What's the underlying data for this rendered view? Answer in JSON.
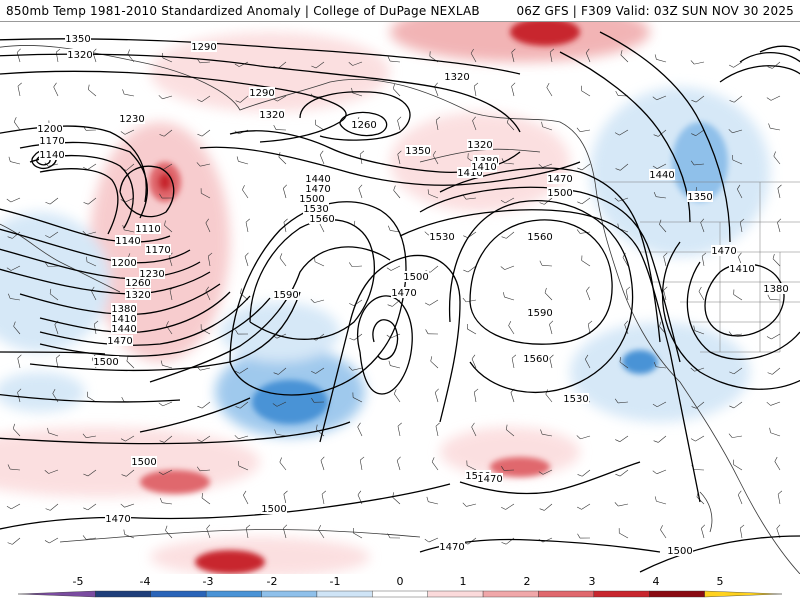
{
  "header": {
    "title_left": "850mb Temp 1981-2010 Standardized Anomaly | College of DuPage NEXLAB",
    "title_right": "06Z GFS | F309 Valid: 03Z SUN NOV 30 2025"
  },
  "map": {
    "variable": "850mb Temp Standardized Anomaly",
    "contour_field": "850mb geopotential height (dam)",
    "contour_labels": [
      "1350",
      "1320",
      "1290",
      "1290",
      "1320",
      "1320",
      "1260",
      "1320",
      "1350",
      "1380",
      "1410",
      "1440",
      "1470",
      "1500",
      "1530",
      "1560",
      "1560",
      "1500",
      "1470",
      "1230",
      "1200",
      "1170",
      "1140",
      "1110",
      "1140",
      "1170",
      "1200",
      "1230",
      "1260",
      "1320",
      "1380",
      "1410",
      "1440",
      "1470",
      "1500",
      "1590",
      "1500",
      "1470",
      "1410",
      "1530",
      "1590",
      "1560",
      "1530",
      "1500",
      "1500",
      "1470",
      "1470",
      "1500",
      "1470",
      "1410",
      "1380",
      "1350",
      "1440",
      "1500",
      "1470"
    ]
  },
  "legend": {
    "tick_labels": [
      "-5",
      "-4",
      "-3",
      "-2",
      "-1",
      "0",
      "1",
      "2",
      "3",
      "4",
      "5"
    ],
    "colors": [
      "#7a4ba0",
      "#1f3e7a",
      "#2a64b8",
      "#4a93d6",
      "#8fc0ea",
      "#cfe4f6",
      "#ffffff",
      "#fbdadb",
      "#f0a7a9",
      "#e0686d",
      "#c8262e",
      "#8a0b12",
      "#ffd21e"
    ]
  }
}
